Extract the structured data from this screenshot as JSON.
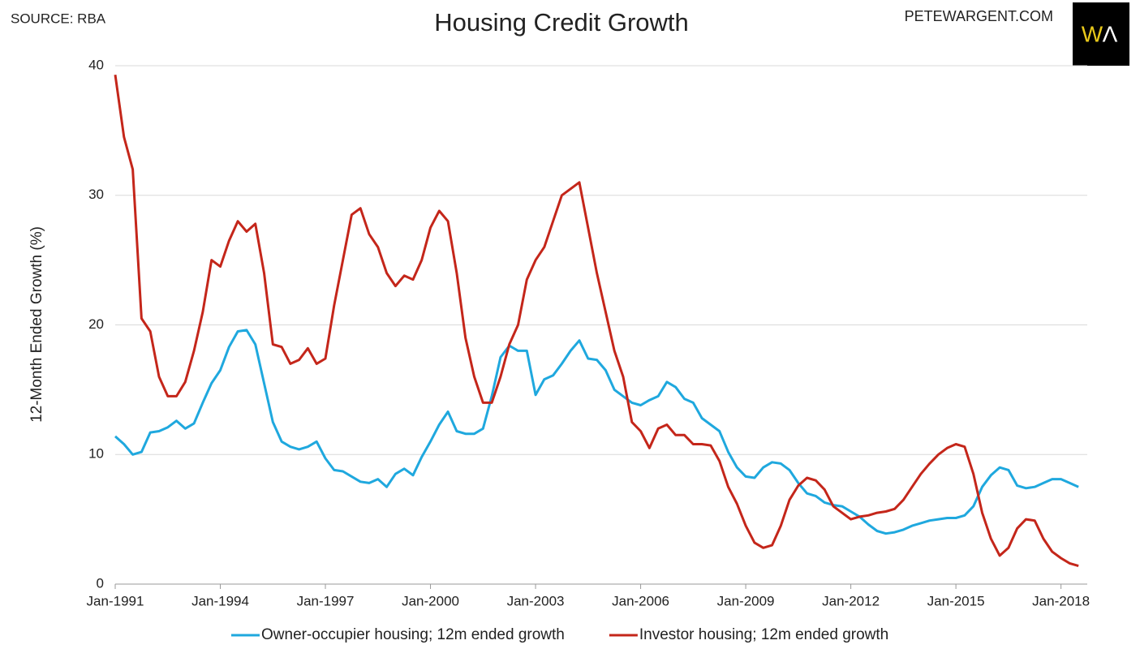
{
  "chart_data": {
    "type": "line",
    "title": "Housing Credit Growth",
    "source": "SOURCE: RBA",
    "credit": "PETEWARGENT.COM",
    "logo": [
      "W",
      "Λ"
    ],
    "y_label": "12-Month Ended Growth (%)",
    "x": [
      1991,
      1991.25,
      1991.5,
      1991.75,
      1992,
      1992.25,
      1992.5,
      1992.75,
      1993,
      1993.25,
      1993.5,
      1993.75,
      1994,
      1994.25,
      1994.5,
      1994.75,
      1995,
      1995.25,
      1995.5,
      1995.75,
      1996,
      1996.25,
      1996.5,
      1996.75,
      1997,
      1997.25,
      1997.5,
      1997.75,
      1998,
      1998.25,
      1998.5,
      1998.75,
      1999,
      1999.25,
      1999.5,
      1999.75,
      2000,
      2000.25,
      2000.5,
      2000.75,
      2001,
      2001.25,
      2001.5,
      2001.75,
      2002,
      2002.25,
      2002.5,
      2002.75,
      2003,
      2003.25,
      2003.5,
      2003.75,
      2004,
      2004.25,
      2004.5,
      2004.75,
      2005,
      2005.25,
      2005.5,
      2005.75,
      2006,
      2006.25,
      2006.5,
      2006.75,
      2007,
      2007.25,
      2007.5,
      2007.75,
      2008,
      2008.25,
      2008.5,
      2008.75,
      2009,
      2009.25,
      2009.5,
      2009.75,
      2010,
      2010.25,
      2010.5,
      2010.75,
      2011,
      2011.25,
      2011.5,
      2011.75,
      2012,
      2012.25,
      2012.5,
      2012.75,
      2013,
      2013.25,
      2013.5,
      2013.75,
      2014,
      2014.25,
      2014.5,
      2014.75,
      2015,
      2015.25,
      2015.5,
      2015.75,
      2016,
      2016.25,
      2016.5,
      2016.75,
      2017,
      2017.25,
      2017.5,
      2017.75,
      2018,
      2018.25,
      2018.5
    ],
    "series": [
      {
        "name": "Owner-occupier housing; 12m ended growth",
        "color": "#1fa8de",
        "values": [
          11.4,
          10.8,
          10.0,
          10.2,
          11.7,
          11.8,
          12.1,
          12.6,
          12.0,
          12.4,
          14.0,
          15.5,
          16.5,
          18.3,
          19.5,
          19.6,
          18.5,
          15.5,
          12.5,
          11.0,
          10.6,
          10.4,
          10.6,
          11.0,
          9.7,
          8.8,
          8.7,
          8.3,
          7.9,
          7.8,
          8.1,
          7.5,
          8.5,
          8.9,
          8.4,
          9.8,
          11.0,
          12.3,
          13.3,
          11.8,
          11.6,
          11.6,
          12.0,
          14.5,
          17.5,
          18.4,
          18.0,
          18.0,
          14.6,
          15.8,
          16.1,
          17.0,
          18.0,
          18.8,
          17.4,
          17.3,
          16.5,
          15.0,
          14.5,
          14.0,
          13.8,
          14.2,
          14.5,
          15.6,
          15.2,
          14.3,
          14.0,
          12.8,
          12.3,
          11.8,
          10.2,
          9.0,
          8.3,
          8.2,
          9.0,
          9.4,
          9.3,
          8.8,
          7.8,
          7.0,
          6.8,
          6.3,
          6.1,
          6.0,
          5.6,
          5.2,
          4.6,
          4.1,
          3.9,
          4.0,
          4.2,
          4.5,
          4.7,
          4.9,
          5.0,
          5.1,
          5.1,
          5.3,
          6.0,
          7.5,
          8.4,
          9.0,
          8.8,
          7.6,
          7.4,
          7.5,
          7.8,
          8.1,
          8.1,
          7.8,
          7.5
        ]
      },
      {
        "name": "Investor housing; 12m ended growth",
        "color": "#c4261a",
        "values": [
          39.3,
          34.5,
          32.0,
          20.5,
          19.5,
          16.0,
          14.5,
          14.5,
          15.6,
          18.0,
          21.0,
          25.0,
          24.5,
          26.5,
          28.0,
          27.2,
          27.8,
          24.0,
          18.5,
          18.3,
          17.0,
          17.3,
          18.2,
          17.0,
          17.4,
          21.5,
          25.0,
          28.5,
          29.0,
          27.0,
          26.0,
          24.0,
          23.0,
          23.8,
          23.5,
          25.0,
          27.5,
          28.8,
          28.0,
          24.0,
          19.0,
          16.0,
          14.0,
          14.0,
          16.0,
          18.5,
          20.0,
          23.5,
          25.0,
          26.0,
          28.0,
          30.0,
          30.5,
          31.0,
          27.5,
          24.0,
          21.0,
          18.0,
          16.0,
          12.5,
          11.8,
          10.5,
          12.0,
          12.3,
          11.5,
          11.5,
          10.8,
          10.8,
          10.7,
          9.5,
          7.5,
          6.2,
          4.5,
          3.2,
          2.8,
          3.0,
          4.5,
          6.5,
          7.6,
          8.2,
          8.0,
          7.3,
          6.0,
          5.5,
          5.0,
          5.2,
          5.3,
          5.5,
          5.6,
          5.8,
          6.5,
          7.5,
          8.5,
          9.3,
          10.0,
          10.5,
          10.8,
          10.6,
          8.5,
          5.5,
          3.5,
          2.2,
          2.8,
          4.3,
          5.0,
          4.9,
          3.5,
          2.5,
          2.0,
          1.6,
          1.4
        ]
      }
    ],
    "xlim": [
      1991,
      2018.75
    ],
    "xticks": [
      {
        "value": 1991,
        "label": "Jan-1991"
      },
      {
        "value": 1994,
        "label": "Jan-1994"
      },
      {
        "value": 1997,
        "label": "Jan-1997"
      },
      {
        "value": 2000,
        "label": "Jan-2000"
      },
      {
        "value": 2003,
        "label": "Jan-2003"
      },
      {
        "value": 2006,
        "label": "Jan-2006"
      },
      {
        "value": 2009,
        "label": "Jan-2009"
      },
      {
        "value": 2012,
        "label": "Jan-2012"
      },
      {
        "value": 2015,
        "label": "Jan-2015"
      },
      {
        "value": 2018,
        "label": "Jan-2018"
      }
    ],
    "ylim": [
      0,
      40
    ],
    "yticks": [
      0,
      10,
      20,
      30,
      40
    ],
    "grid": true,
    "legend": "bottom"
  }
}
